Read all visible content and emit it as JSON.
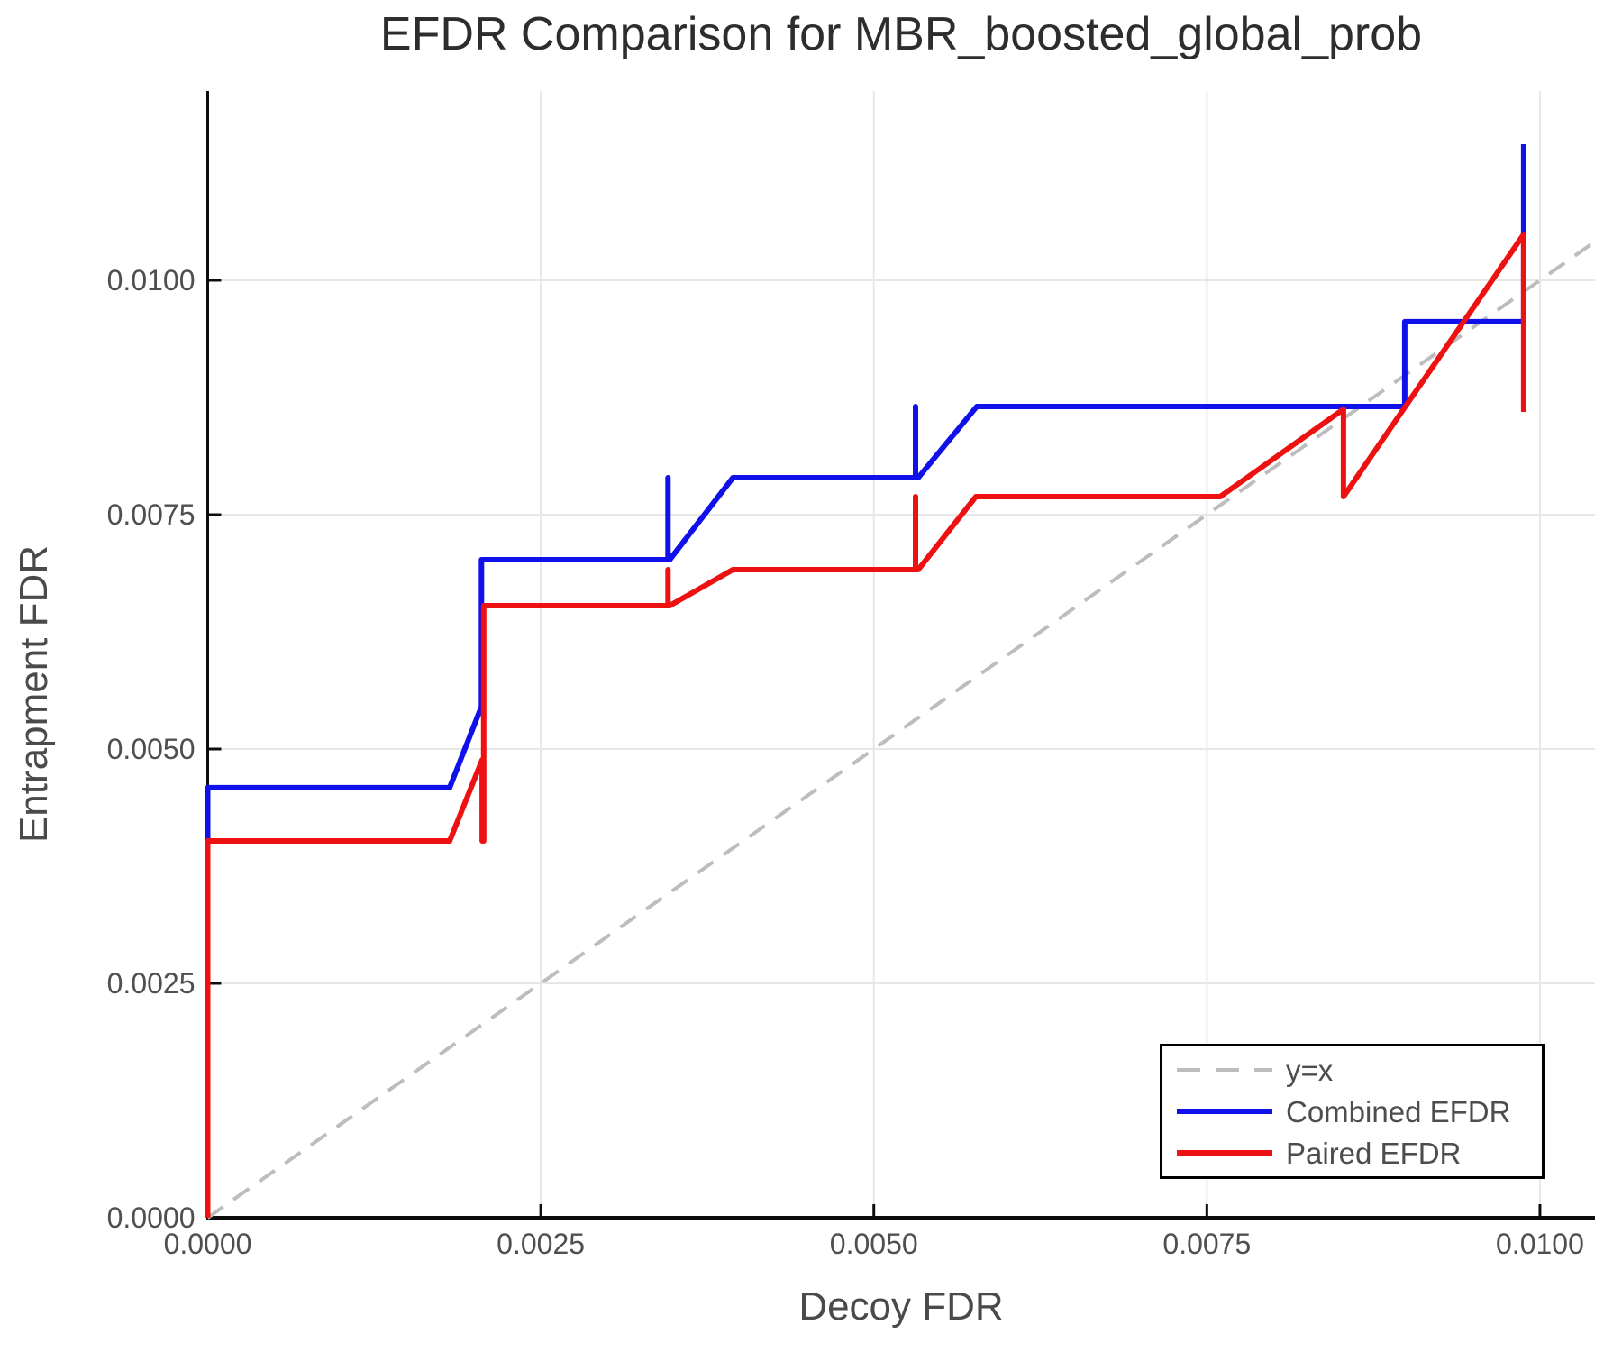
{
  "chart_data": {
    "type": "line",
    "title": "EFDR Comparison for MBR_boosted_global_prob",
    "xlabel": "Decoy FDR",
    "ylabel": "Entrapment FDR",
    "xlim": [
      0,
      0.010413
    ],
    "ylim": [
      0,
      0.012019
    ],
    "grid": true,
    "xticks": {
      "values": [
        0.0,
        0.0025,
        0.005,
        0.0075,
        0.01
      ],
      "labels": [
        "0.0000",
        "0.0025",
        "0.0050",
        "0.0075",
        "0.0100"
      ]
    },
    "yticks": {
      "values": [
        0.0,
        0.0025,
        0.005,
        0.0075,
        0.01
      ],
      "labels": [
        "0.0000",
        "0.0025",
        "0.0050",
        "0.0075",
        "0.0100"
      ]
    },
    "legend": {
      "position": "lower right"
    },
    "colors": {
      "identity": "#bdbdbd",
      "combined": "#1010ea",
      "paired": "#ee1111",
      "grid": "#e7e7e7",
      "spine": "#0d0d0d",
      "tick_label": "#4f4f4f"
    },
    "series": [
      {
        "name": "y=x",
        "style": "dashed",
        "color": "#bdbdbd",
        "width": 4,
        "points": [
          [
            0,
            0
          ],
          [
            0.010413,
            0.010413
          ]
        ]
      },
      {
        "name": "Combined EFDR",
        "style": "solid",
        "color": "#1010ea",
        "width": 6,
        "points": [
          [
            0.0,
            0.0
          ],
          [
            0.0,
            0.004587
          ],
          [
            0.001816,
            0.004587
          ],
          [
            0.002055,
            0.005452
          ],
          [
            0.002055,
            0.007019
          ],
          [
            0.003455,
            0.007019
          ],
          [
            0.003455,
            0.007894
          ],
          [
            0.003455,
            0.007019
          ],
          [
            0.003468,
            0.007019
          ],
          [
            0.003942,
            0.007894
          ],
          [
            0.005313,
            0.007894
          ],
          [
            0.005313,
            0.008654
          ],
          [
            0.005313,
            0.007894
          ],
          [
            0.005333,
            0.007894
          ],
          [
            0.005773,
            0.008654
          ],
          [
            0.008985,
            0.008654
          ],
          [
            0.008985,
            0.009558
          ],
          [
            0.009878,
            0.009558
          ],
          [
            0.009878,
            0.011452
          ]
        ]
      },
      {
        "name": "Paired EFDR",
        "style": "solid",
        "color": "#ee1111",
        "width": 6,
        "points": [
          [
            0.0,
            0.0
          ],
          [
            0.0,
            0.004019
          ],
          [
            0.001816,
            0.004019
          ],
          [
            0.00206,
            0.004885
          ],
          [
            0.00206,
            0.004019
          ],
          [
            0.002072,
            0.004019
          ],
          [
            0.002072,
            0.006529
          ],
          [
            0.003455,
            0.006529
          ],
          [
            0.003455,
            0.006913
          ],
          [
            0.003455,
            0.006529
          ],
          [
            0.003468,
            0.006529
          ],
          [
            0.003942,
            0.006913
          ],
          [
            0.005313,
            0.006913
          ],
          [
            0.005313,
            0.007692
          ],
          [
            0.005313,
            0.006913
          ],
          [
            0.005333,
            0.006913
          ],
          [
            0.005766,
            0.007692
          ],
          [
            0.0076,
            0.007692
          ],
          [
            0.008525,
            0.008625
          ],
          [
            0.008525,
            0.007692
          ],
          [
            0.009878,
            0.01049
          ],
          [
            0.009878,
            0.008596
          ]
        ]
      }
    ]
  }
}
